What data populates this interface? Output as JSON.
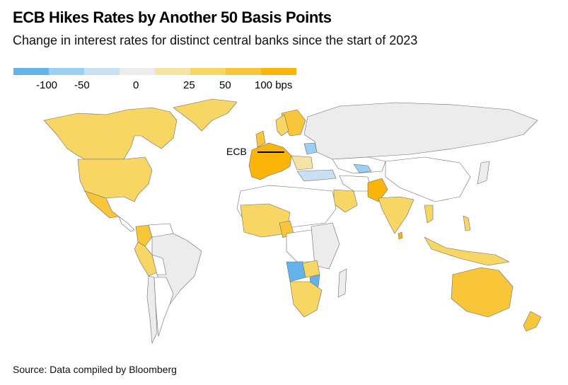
{
  "header": {
    "title": "ECB Hikes Rates by Another 50 Basis Points",
    "subtitle": "Change in interest rates for distinct central banks since the start of 2023"
  },
  "legend": {
    "swatches": [
      "#63b3ea",
      "#9ccff5",
      "#c8e0f2",
      "#ececec",
      "#f5e3a3",
      "#f7d664",
      "#f9c63a",
      "#fbb40a"
    ],
    "labels": [
      "-100",
      "-50",
      "0",
      "25",
      "50",
      "100 bps"
    ]
  },
  "annotation": {
    "ecb": "ECB"
  },
  "footer": {
    "source": "Source: Data compiled by Bloomberg"
  },
  "chart_data": {
    "type": "choropleth",
    "title": "ECB Hikes Rates by Another 50 Basis Points",
    "subtitle": "Change in interest rates for distinct central banks since the start of 2023",
    "unit": "bps",
    "scale_breaks": [
      -100,
      -50,
      0,
      25,
      50,
      100
    ],
    "regions": [
      {
        "name": "Eurozone (ECB)",
        "category": "100+"
      },
      {
        "name": "United States",
        "category": "25-50"
      },
      {
        "name": "Canada",
        "category": "25-50"
      },
      {
        "name": "Mexico",
        "category": "50-100"
      },
      {
        "name": "Colombia",
        "category": "50-100"
      },
      {
        "name": "Peru",
        "category": "25-50"
      },
      {
        "name": "Chile",
        "category": "0"
      },
      {
        "name": "Brazil",
        "category": "0"
      },
      {
        "name": "United Kingdom",
        "category": "50-100"
      },
      {
        "name": "Sweden",
        "category": "50-100"
      },
      {
        "name": "Norway",
        "category": "25-50"
      },
      {
        "name": "Russia",
        "category": "0"
      },
      {
        "name": "Belarus",
        "category": "-50"
      },
      {
        "name": "Turkey",
        "category": "-50 to 0"
      },
      {
        "name": "Uzbekistan",
        "category": "-50"
      },
      {
        "name": "Pakistan",
        "category": "100+"
      },
      {
        "name": "India",
        "category": "25-50"
      },
      {
        "name": "Sri Lanka",
        "category": "50-100"
      },
      {
        "name": "Saudi Arabia",
        "category": "25-50"
      },
      {
        "name": "Nigeria",
        "category": "50-100"
      },
      {
        "name": "Angola",
        "category": "-100"
      },
      {
        "name": "Malawi",
        "category": "-100"
      },
      {
        "name": "Zambia",
        "category": "25-50"
      },
      {
        "name": "South Africa",
        "category": "25-50"
      },
      {
        "name": "Namibia",
        "category": "25-50"
      },
      {
        "name": "Australia",
        "category": "50-100"
      },
      {
        "name": "New Zealand",
        "category": "50-100"
      },
      {
        "name": "China",
        "category": "0"
      },
      {
        "name": "Indonesia",
        "category": "25-50"
      },
      {
        "name": "Philippines",
        "category": "25-50"
      }
    ]
  }
}
